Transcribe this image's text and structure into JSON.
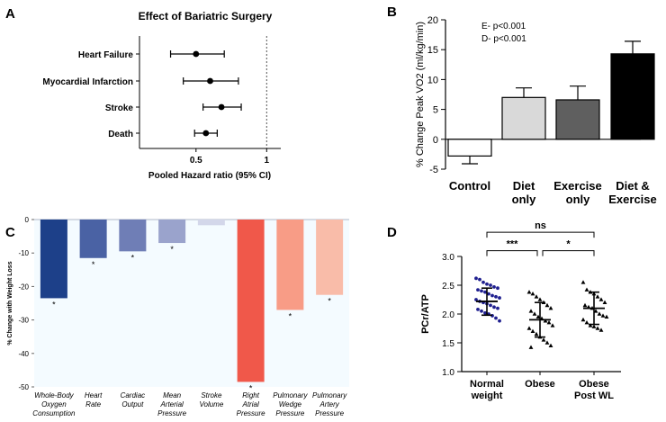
{
  "panels": [
    "A",
    "B",
    "C",
    "D"
  ],
  "chart_data": [
    {
      "panel": "A",
      "type": "scatter",
      "subtype": "forest-plot",
      "title": "Effect of Bariatric Surgery",
      "xlabel": "Pooled Hazard ratio (95% CI)",
      "xlim": [
        0.1,
        1.1
      ],
      "xticks": [
        {
          "value": 0.5,
          "label": "0.5"
        },
        {
          "value": 1,
          "label": "1"
        }
      ],
      "reference_line": 1,
      "rows": [
        {
          "label": "Heart Failure",
          "estimate": 0.5,
          "lower": 0.32,
          "upper": 0.7
        },
        {
          "label": "Myocardial Infarction",
          "estimate": 0.6,
          "lower": 0.41,
          "upper": 0.8
        },
        {
          "label": "Stroke",
          "estimate": 0.68,
          "lower": 0.55,
          "upper": 0.82
        },
        {
          "label": "Death",
          "estimate": 0.57,
          "lower": 0.49,
          "upper": 0.65
        }
      ]
    },
    {
      "panel": "B",
      "type": "bar",
      "ylabel": "% Change Peak VO2 (ml/kg/min)",
      "ylim": [
        -5,
        20
      ],
      "yticks": [
        "-5",
        "0",
        "5",
        "10",
        "15",
        "20"
      ],
      "annotations": [
        "E- p<0.001",
        "D- p<0.001"
      ],
      "categories": [
        "Control",
        "Diet only",
        "Exercise only",
        "Diet & Exercise"
      ],
      "category_lines": [
        [
          "Control"
        ],
        [
          "Diet",
          "only"
        ],
        [
          "Exercise",
          "only"
        ],
        [
          "Diet &",
          "Exercise"
        ]
      ],
      "values": [
        -2.8,
        7.0,
        6.6,
        14.3
      ],
      "errors": [
        1.3,
        1.6,
        2.3,
        2.1
      ],
      "colors": [
        "#ffffff",
        "#d9d9d9",
        "#5f5f5f",
        "#000000"
      ]
    },
    {
      "panel": "C",
      "type": "bar",
      "ylabel": "% Change with Weight Loss",
      "ylim": [
        -50,
        0
      ],
      "yticks": [
        "0",
        "-10",
        "-20",
        "-30",
        "-40",
        "-50"
      ],
      "categories": [
        "Whole-Body Oxygen Consumption",
        "Heart Rate",
        "Cardiac Output",
        "Mean Arterial Pressure",
        "Stroke Volume",
        "Right Atrial Pressure",
        "Pulmonary Wedge Pressure",
        "Pulmonary Artery Pressure"
      ],
      "category_lines": [
        [
          "Whole-Body",
          "Oxygen",
          "Consumption"
        ],
        [
          "Heart",
          "Rate"
        ],
        [
          "Cardiac",
          "Output"
        ],
        [
          "Mean",
          "Arterial",
          "Pressure"
        ],
        [
          "Stroke",
          "Volume"
        ],
        [
          "Right",
          "Atrial",
          "Pressure"
        ],
        [
          "Pulmonary",
          "Wedge",
          "Pressure"
        ],
        [
          "Pulmonary",
          "Artery",
          "Pressure"
        ]
      ],
      "values": [
        -23.5,
        -11.5,
        -9.5,
        -7,
        -1.7,
        -48.5,
        -27,
        -22.5
      ],
      "significant": [
        true,
        true,
        true,
        true,
        false,
        true,
        true,
        true
      ],
      "significance_marker": "*",
      "colors": [
        "#1d4089",
        "#4a62a4",
        "#6f7eb6",
        "#9aa3cc",
        "#d3d7ea",
        "#f0584a",
        "#f89c86",
        "#f9bca9"
      ]
    },
    {
      "panel": "D",
      "type": "scatter",
      "ylabel": "PCr/ATP",
      "ylim": [
        1.0,
        3.0
      ],
      "yticks": [
        "1.0",
        "1.5",
        "2.0",
        "2.5",
        "3.0"
      ],
      "groups": [
        {
          "name": "Normal weight",
          "label_lines": [
            "Normal",
            "weight"
          ],
          "marker": "circle",
          "color": "#1f1f8f",
          "mean": 2.22,
          "sd_upper": 2.45,
          "sd_lower": 1.98,
          "values": [
            2.62,
            2.6,
            2.55,
            2.52,
            2.5,
            2.47,
            2.45,
            2.42,
            2.4,
            2.38,
            2.35,
            2.32,
            2.3,
            2.28,
            2.25,
            2.22,
            2.2,
            2.18,
            2.15,
            2.12,
            2.1,
            2.08,
            2.05,
            2.02,
            2.0,
            1.97,
            1.93,
            1.88
          ]
        },
        {
          "name": "Obese",
          "label_lines": [
            "Obese"
          ],
          "marker": "triangle",
          "color": "#000000",
          "mean": 1.9,
          "sd_upper": 2.2,
          "sd_lower": 1.6,
          "values": [
            2.38,
            2.35,
            2.3,
            2.25,
            2.2,
            2.15,
            2.1,
            2.05,
            2.0,
            1.95,
            1.92,
            1.88,
            1.85,
            1.8,
            1.75,
            1.7,
            1.65,
            1.6,
            1.55,
            1.5,
            1.45,
            1.42
          ]
        },
        {
          "name": "Obese Post WL",
          "label_lines": [
            "Obese",
            "Post WL"
          ],
          "marker": "triangle",
          "color": "#000000",
          "mean": 2.1,
          "sd_upper": 2.38,
          "sd_lower": 1.82,
          "values": [
            2.55,
            2.42,
            2.38,
            2.35,
            2.3,
            2.25,
            2.2,
            2.15,
            2.12,
            2.1,
            2.05,
            2.0,
            1.97,
            1.95,
            1.9,
            1.85,
            1.8,
            1.78,
            1.75,
            1.72
          ]
        }
      ],
      "comparisons": [
        {
          "from": 0,
          "to": 2,
          "label": "ns",
          "level": 3.42
        },
        {
          "from": 0,
          "to": 1,
          "label": "***",
          "level": 3.1
        },
        {
          "from": 1,
          "to": 2,
          "label": "*",
          "level": 3.1
        }
      ]
    }
  ]
}
